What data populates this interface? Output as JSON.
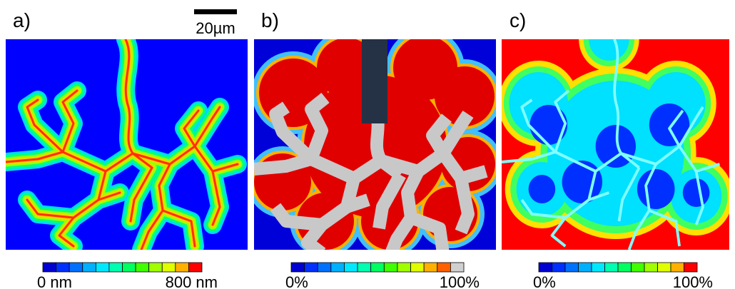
{
  "scale_bar": {
    "label": "20µm"
  },
  "panels": [
    {
      "label": "a)",
      "colorbar": {
        "min_label": "0 nm",
        "max_label": "800 nm"
      }
    },
    {
      "label": "b)",
      "colorbar": {
        "min_label": "0%",
        "max_label": "100%"
      }
    },
    {
      "label": "c)",
      "colorbar": {
        "min_label": "0%",
        "max_label": "100%"
      }
    }
  ]
}
